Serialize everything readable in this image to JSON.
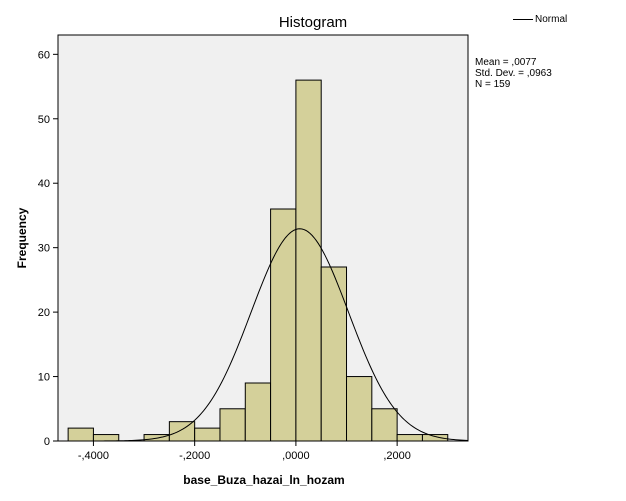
{
  "chart_data": {
    "type": "bar",
    "title": "Histogram",
    "xlabel": "base_Buza_hazai_ln_hozam",
    "ylabel": "Frequency",
    "ylim": [
      0,
      63
    ],
    "xlim": [
      -0.47,
      0.34
    ],
    "yticks": [
      0,
      10,
      20,
      30,
      40,
      50,
      60
    ],
    "ytick_labels": [
      "0",
      "10",
      "20",
      "30",
      "40",
      "50",
      "60"
    ],
    "xticks": [
      -0.4,
      -0.2,
      0.0,
      0.2
    ],
    "xtick_labels": [
      "-,4000",
      "-,2000",
      ",0000",
      ",2000"
    ],
    "bins": [
      {
        "x0": -0.45,
        "x1": -0.4,
        "count": 2
      },
      {
        "x0": -0.4,
        "x1": -0.35,
        "count": 1
      },
      {
        "x0": -0.35,
        "x1": -0.3,
        "count": 0
      },
      {
        "x0": -0.3,
        "x1": -0.25,
        "count": 1
      },
      {
        "x0": -0.25,
        "x1": -0.2,
        "count": 3
      },
      {
        "x0": -0.2,
        "x1": -0.15,
        "count": 2
      },
      {
        "x0": -0.15,
        "x1": -0.1,
        "count": 5
      },
      {
        "x0": -0.1,
        "x1": -0.05,
        "count": 9
      },
      {
        "x0": -0.05,
        "x1": 0.0,
        "count": 36
      },
      {
        "x0": 0.0,
        "x1": 0.05,
        "count": 56
      },
      {
        "x0": 0.05,
        "x1": 0.1,
        "count": 27
      },
      {
        "x0": 0.1,
        "x1": 0.15,
        "count": 10
      },
      {
        "x0": 0.15,
        "x1": 0.2,
        "count": 5
      },
      {
        "x0": 0.2,
        "x1": 0.25,
        "count": 1
      },
      {
        "x0": 0.25,
        "x1": 0.3,
        "count": 1
      }
    ],
    "normal_curve": {
      "mean": 0.0077,
      "sd": 0.0963,
      "n": 159,
      "bin_width": 0.05
    },
    "stats": [
      "Mean = ,0077",
      "Std. Dev. = ,0963",
      "N = 159"
    ],
    "legend": [
      "Normal"
    ],
    "legend_position": "top-right",
    "grid": false,
    "colors": {
      "bar_fill": "#d4d09a",
      "bar_edge": "#000000",
      "plot_bg": "#f0f0f0",
      "curve": "#000000"
    }
  }
}
